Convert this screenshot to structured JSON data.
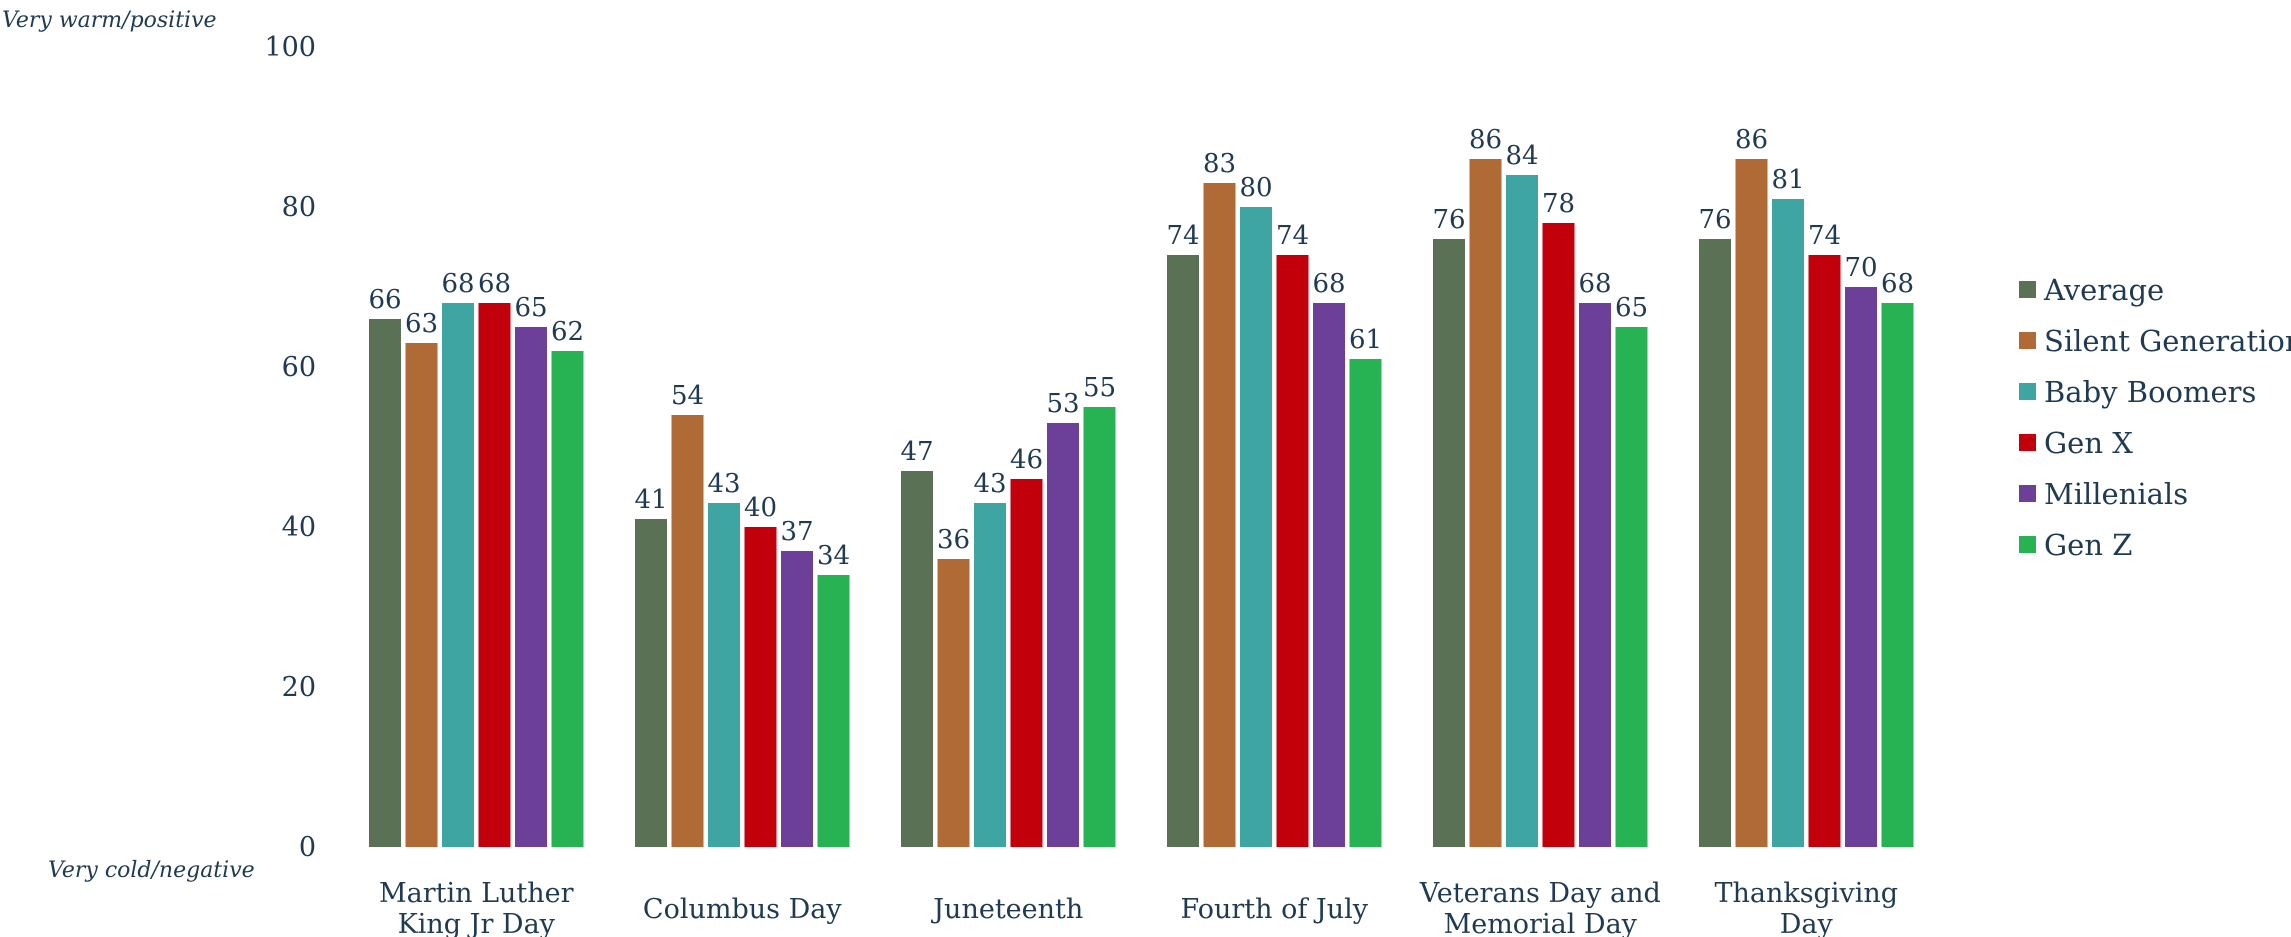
{
  "chart_data": {
    "type": "bar",
    "title": "",
    "xlabel": "",
    "ylabel": "",
    "ylim": [
      0,
      100
    ],
    "yticks": [
      0,
      20,
      40,
      60,
      80,
      100
    ],
    "y_annotations": {
      "top": "Very warm/positive",
      "bottom": "Very cold/negative"
    },
    "grid": false,
    "legend_position": "right",
    "categories": [
      [
        "Martin Luther",
        "King Jr Day"
      ],
      [
        "Columbus Day"
      ],
      [
        "Juneteenth"
      ],
      [
        "Fourth of July"
      ],
      [
        "Veterans Day and",
        "Memorial Day"
      ],
      [
        "Thanksgiving",
        "Day"
      ]
    ],
    "series": [
      {
        "name": "Average",
        "color": "#5b7155",
        "values": [
          66,
          41,
          47,
          74,
          76,
          76
        ]
      },
      {
        "name": "Silent Generation",
        "color": "#b06a35",
        "values": [
          63,
          54,
          36,
          83,
          86,
          86
        ]
      },
      {
        "name": "Baby Boomers",
        "color": "#3fa5a2",
        "values": [
          68,
          43,
          43,
          80,
          84,
          81
        ]
      },
      {
        "name": "Gen X",
        "color": "#c1000c",
        "values": [
          68,
          40,
          46,
          74,
          78,
          74
        ]
      },
      {
        "name": "Millenials",
        "color": "#6c3f99",
        "values": [
          65,
          37,
          53,
          68,
          68,
          70
        ]
      },
      {
        "name": "Gen Z",
        "color": "#27b254",
        "values": [
          62,
          34,
          55,
          61,
          65,
          68
        ]
      }
    ]
  }
}
